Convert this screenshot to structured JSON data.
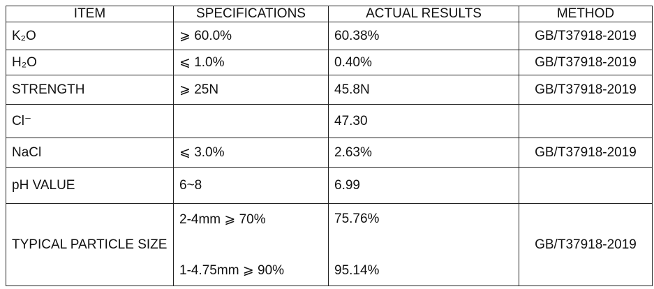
{
  "table": {
    "header": [
      "ITEM",
      "SPECIFICATIONS",
      "ACTUAL RESULTS",
      "METHOD"
    ],
    "rows": [
      [
        "K₂O",
        "⩾ 60.0%",
        "60.38%",
        "GB/T37918-2019"
      ],
      [
        "H₂O",
        "⩽ 1.0%",
        "0.40%",
        "GB/T37918-2019"
      ],
      [
        "STRENGTH",
        "⩾ 25N",
        "45.8N",
        "GB/T37918-2019"
      ],
      [
        "Cl⁻",
        null,
        "47.30",
        null
      ],
      [
        "NaCl",
        "⩽ 3.0%",
        "2.63%",
        "GB/T37918-2019"
      ],
      [
        "pH VALUE",
        "6~8",
        "6.99",
        null
      ],
      [
        "TYPICAL PARTICLE SIZE",
        [
          "2-4mm ⩾ 70%",
          "1-4.75mm ⩾ 90%"
        ],
        [
          "75.76%",
          "95.14%"
        ],
        "GB/T37918-2019"
      ]
    ]
  }
}
